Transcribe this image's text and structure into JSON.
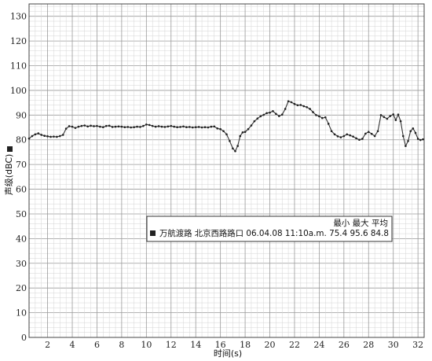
{
  "chart_data": {
    "type": "line",
    "xlabel": "时间(s)",
    "ylabel": "声级(dBC)",
    "xlim": [
      0.5,
      32.5
    ],
    "ylim": [
      0,
      135
    ],
    "x_ticks": [
      "2",
      "4",
      "6",
      "8",
      "10",
      "12",
      "14",
      "16",
      "18",
      "20",
      "22",
      "24",
      "26",
      "28",
      "30",
      "32"
    ],
    "y_ticks": [
      "0",
      "10",
      "20",
      "30",
      "40",
      "50",
      "60",
      "70",
      "80",
      "90",
      "100",
      "110",
      "120",
      "130"
    ],
    "grid": true,
    "legend": {
      "placement": "center-right",
      "header": "最小 最大 平均",
      "entry": "万航渡路 北京西路路口 06.04.08 11:10a.m. 75.4 95.6 84.8"
    },
    "colors": {
      "line": "#333333",
      "grid_major": "#9a9a9a",
      "grid_minor": "#d4d4d4"
    },
    "series": [
      {
        "values": [
          [
            0.5,
            80.5
          ],
          [
            0.75,
            81.5
          ],
          [
            1,
            82.2
          ],
          [
            1.25,
            82.6
          ],
          [
            1.5,
            82.0
          ],
          [
            1.75,
            81.6
          ],
          [
            2,
            81.4
          ],
          [
            2.25,
            81.2
          ],
          [
            2.5,
            81.3
          ],
          [
            2.75,
            81.2
          ],
          [
            3,
            81.5
          ],
          [
            3.25,
            82.0
          ],
          [
            3.5,
            84.5
          ],
          [
            3.75,
            85.5
          ],
          [
            4,
            85.3
          ],
          [
            4.25,
            84.8
          ],
          [
            4.5,
            85.3
          ],
          [
            4.75,
            85.6
          ],
          [
            5,
            85.8
          ],
          [
            5.25,
            85.4
          ],
          [
            5.5,
            85.7
          ],
          [
            5.75,
            85.5
          ],
          [
            6,
            85.6
          ],
          [
            6.25,
            85.3
          ],
          [
            6.5,
            85.1
          ],
          [
            6.75,
            85.6
          ],
          [
            7,
            85.7
          ],
          [
            7.25,
            85.2
          ],
          [
            7.5,
            85.3
          ],
          [
            7.75,
            85.4
          ],
          [
            8,
            85.3
          ],
          [
            8.25,
            85.1
          ],
          [
            8.5,
            85.2
          ],
          [
            8.75,
            85.0
          ],
          [
            9,
            85.1
          ],
          [
            9.25,
            85.3
          ],
          [
            9.5,
            85.2
          ],
          [
            9.75,
            85.6
          ],
          [
            10,
            86.2
          ],
          [
            10.25,
            86.0
          ],
          [
            10.5,
            85.6
          ],
          [
            10.75,
            85.3
          ],
          [
            11,
            85.5
          ],
          [
            11.25,
            85.3
          ],
          [
            11.5,
            85.2
          ],
          [
            11.75,
            85.4
          ],
          [
            12,
            85.6
          ],
          [
            12.25,
            85.3
          ],
          [
            12.5,
            85.1
          ],
          [
            12.75,
            85.2
          ],
          [
            13,
            85.4
          ],
          [
            13.25,
            85.1
          ],
          [
            13.5,
            85.2
          ],
          [
            13.75,
            85.0
          ],
          [
            14,
            85.1
          ],
          [
            14.25,
            85.2
          ],
          [
            14.5,
            85.0
          ],
          [
            14.75,
            85.1
          ],
          [
            15,
            85.0
          ],
          [
            15.25,
            85.3
          ],
          [
            15.5,
            85.4
          ],
          [
            15.75,
            84.6
          ],
          [
            16,
            84.3
          ],
          [
            16.25,
            83.5
          ],
          [
            16.5,
            82.2
          ],
          [
            16.75,
            79.5
          ],
          [
            17,
            76.5
          ],
          [
            17.2,
            75.4
          ],
          [
            17.4,
            77.5
          ],
          [
            17.6,
            81.5
          ],
          [
            17.8,
            83.0
          ],
          [
            18,
            83.2
          ],
          [
            18.25,
            84.3
          ],
          [
            18.5,
            85.8
          ],
          [
            18.75,
            87.5
          ],
          [
            19,
            88.6
          ],
          [
            19.25,
            89.5
          ],
          [
            19.5,
            90.1
          ],
          [
            19.75,
            90.8
          ],
          [
            20,
            91.0
          ],
          [
            20.25,
            91.6
          ],
          [
            20.5,
            90.5
          ],
          [
            20.75,
            89.6
          ],
          [
            21,
            90.2
          ],
          [
            21.25,
            92.5
          ],
          [
            21.5,
            95.6
          ],
          [
            21.75,
            95.2
          ],
          [
            22,
            94.5
          ],
          [
            22.25,
            94.0
          ],
          [
            22.5,
            94.1
          ],
          [
            22.75,
            93.6
          ],
          [
            23,
            93.2
          ],
          [
            23.25,
            92.5
          ],
          [
            23.5,
            91.2
          ],
          [
            23.75,
            90.0
          ],
          [
            24,
            89.5
          ],
          [
            24.25,
            88.8
          ],
          [
            24.5,
            89.1
          ],
          [
            24.75,
            86.5
          ],
          [
            25,
            83.5
          ],
          [
            25.25,
            82.2
          ],
          [
            25.5,
            81.4
          ],
          [
            25.75,
            81.0
          ],
          [
            26,
            81.5
          ],
          [
            26.25,
            82.2
          ],
          [
            26.5,
            81.8
          ],
          [
            26.75,
            81.3
          ],
          [
            27,
            80.6
          ],
          [
            27.25,
            80.0
          ],
          [
            27.5,
            80.4
          ],
          [
            27.75,
            82.5
          ],
          [
            28,
            83.2
          ],
          [
            28.25,
            82.4
          ],
          [
            28.5,
            81.5
          ],
          [
            28.75,
            83.5
          ],
          [
            29,
            90.0
          ],
          [
            29.25,
            89.2
          ],
          [
            29.5,
            88.5
          ],
          [
            29.75,
            89.6
          ],
          [
            30,
            90.3
          ],
          [
            30.2,
            88.0
          ],
          [
            30.4,
            90.2
          ],
          [
            30.6,
            87.5
          ],
          [
            30.8,
            81.5
          ],
          [
            31,
            77.5
          ],
          [
            31.2,
            79.5
          ],
          [
            31.4,
            83.5
          ],
          [
            31.6,
            84.6
          ],
          [
            31.8,
            82.8
          ],
          [
            32,
            80.4
          ],
          [
            32.2,
            79.9
          ],
          [
            32.4,
            80.2
          ]
        ]
      }
    ]
  }
}
